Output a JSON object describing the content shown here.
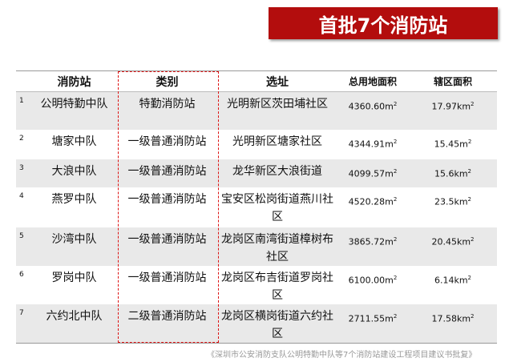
{
  "title": "首批7个消防站",
  "headers": [
    "消防站",
    "类别",
    "选址",
    "总用地面积",
    "辖区面积"
  ],
  "rows": [
    {
      "no": "1",
      "name": "公明特勤中队",
      "type": "特勤消防站",
      "site": "光明新区茨田埔社区",
      "area": "4360.60m",
      "area_sup": "2",
      "district": "17.97km",
      "district_sup": "2"
    },
    {
      "no": "2",
      "name": "塘家中队",
      "type": "一级普通消防站",
      "site": "光明新区塘家社区",
      "area": "4344.91m",
      "area_sup": "2",
      "district": "15.45m",
      "district_sup": "2"
    },
    {
      "no": "3",
      "name": "大浪中队",
      "type": "一级普通消防站",
      "site": "龙华新区大浪街道",
      "area": "4099.57m",
      "area_sup": "2",
      "district": "15.6km",
      "district_sup": "2"
    },
    {
      "no": "4",
      "name": "燕罗中队",
      "type": "一级普通消防站",
      "site": "宝安区松岗街道燕川社区",
      "area": "4520.28m",
      "area_sup": "2",
      "district": "23.5km",
      "district_sup": "2"
    },
    {
      "no": "5",
      "name": "沙湾中队",
      "type": "一级普通消防站",
      "site": "龙岗区南湾街道樟树布社区",
      "area": "3865.72m",
      "area_sup": "2",
      "district": "20.45km",
      "district_sup": "2"
    },
    {
      "no": "6",
      "name": "罗岗中队",
      "type": "一级普通消防站",
      "site": "龙岗区布吉街道罗岗社区",
      "area": "6100.00m",
      "area_sup": "2",
      "district": "6.14km",
      "district_sup": "2"
    },
    {
      "no": "7",
      "name": "六约北中队",
      "type": "二级普通消防站",
      "site": "龙岗区横岗街道六约社区",
      "area": "2711.55m",
      "area_sup": "2",
      "district": "17.58km",
      "district_sup": "2"
    }
  ],
  "source": "《深圳市公安消防支队公明特勤中队等7个消防站建设工程项目建议书批复》",
  "colors": {
    "title_bg": "#b30d0d",
    "highlight_border": "#dd1111",
    "row_alt": "#e9e9e9"
  }
}
